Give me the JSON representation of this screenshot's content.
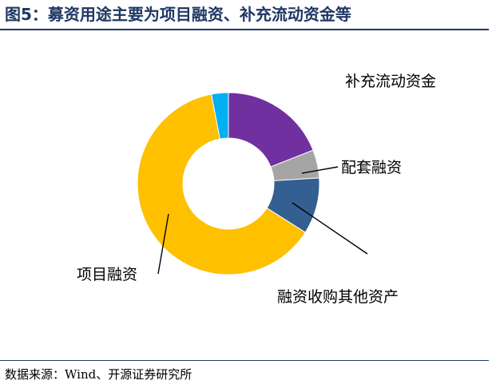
{
  "figure": {
    "title": "图5：募资用途主要为项目融资、补充流动资金等",
    "source": "数据来源：Wind、开源证券研究所"
  },
  "colors": {
    "title": "#1f3864",
    "补充流动资金": "#7030a0",
    "配套融资": "#a5a5a5",
    "融资收购其他资产": "#335f91",
    "项目融资": "#ffc000",
    "other": "#00b0f0"
  },
  "chart_data": {
    "type": "pie",
    "variant": "donut",
    "title": "",
    "legend": "none",
    "series": [
      {
        "name": "补充流动资金",
        "value": 19
      },
      {
        "name": "配套融资",
        "value": 5
      },
      {
        "name": "融资收购其他资产",
        "value": 10
      },
      {
        "name": "项目融资",
        "value": 63
      },
      {
        "name": "",
        "value": 3
      }
    ]
  }
}
